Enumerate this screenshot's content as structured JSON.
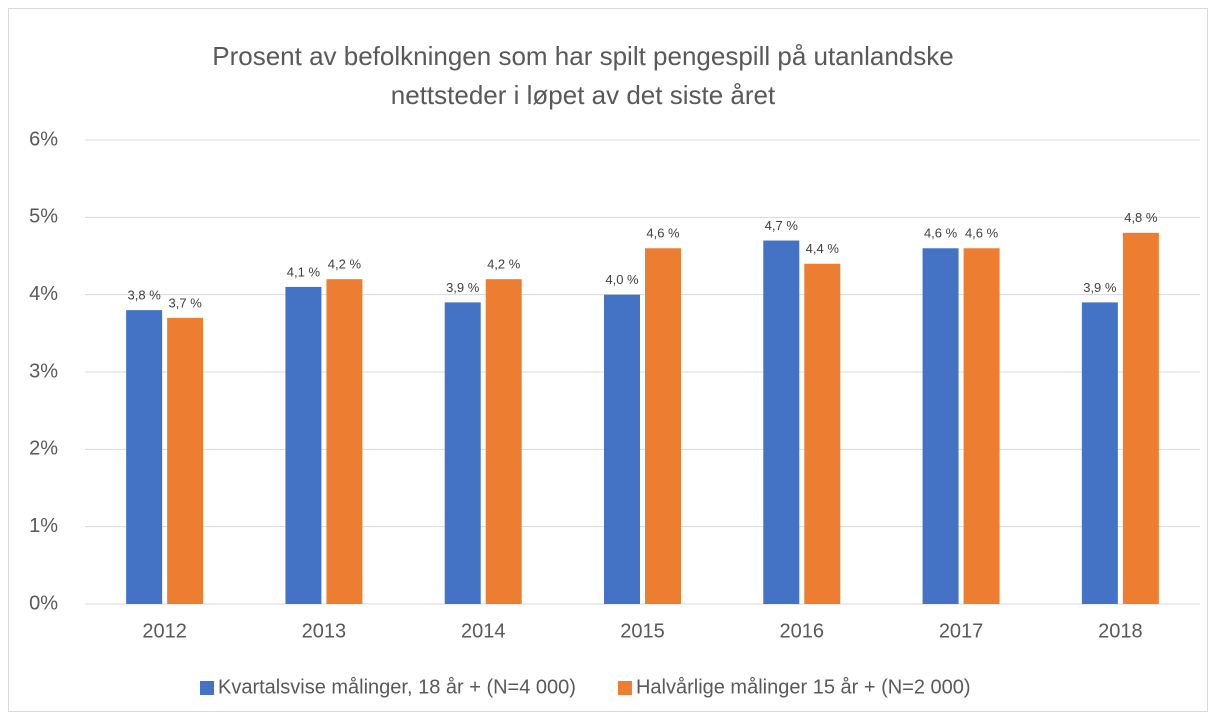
{
  "chart_data": {
    "type": "bar",
    "title": [
      "Prosent av befolkningen som har spilt pengespill på utanlandske",
      "nettsteder i løpet av det siste året"
    ],
    "categories": [
      "2012",
      "2013",
      "2014",
      "2015",
      "2016",
      "2017",
      "2018"
    ],
    "series": [
      {
        "name": "Kvartalsvise målinger, 18 år + (N=4 000)",
        "color": "#4472c4",
        "values": [
          3.8,
          4.1,
          3.9,
          4.0,
          4.7,
          4.6,
          3.9
        ],
        "value_labels": [
          "3,8 %",
          "4,1 %",
          "3,9 %",
          "4,0 %",
          "4,7 %",
          "4,6 %",
          "3,9 %"
        ]
      },
      {
        "name": "Halvårlige målinger 15 år + (N=2 000)",
        "color": "#ed7d31",
        "values": [
          3.7,
          4.2,
          4.2,
          4.6,
          4.4,
          4.6,
          4.8
        ],
        "value_labels": [
          "3,7 %",
          "4,2 %",
          "4,2 %",
          "4,6 %",
          "4,4 %",
          "4,6 %",
          "4,8 %"
        ]
      }
    ],
    "ylim": [
      0,
      6
    ],
    "yticks": [
      {
        "value": 0,
        "label": "0%"
      },
      {
        "value": 1,
        "label": "1%"
      },
      {
        "value": 2,
        "label": "2%"
      },
      {
        "value": 3,
        "label": "3%"
      },
      {
        "value": 4,
        "label": "4%"
      },
      {
        "value": 5,
        "label": "5%"
      },
      {
        "value": 6,
        "label": "6%"
      }
    ],
    "grid": true,
    "legend": "bottom"
  }
}
